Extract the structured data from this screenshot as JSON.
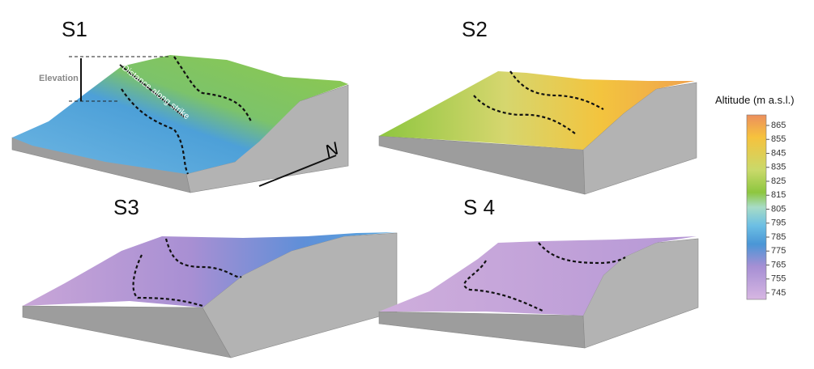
{
  "panels": [
    {
      "label": "S1"
    },
    {
      "label": "S2"
    },
    {
      "label": "S3"
    },
    {
      "label": "S 4"
    }
  ],
  "annotations": {
    "elevation": "Elevation",
    "distance": "Distance along strike",
    "north": "N"
  },
  "colorbar": {
    "title": "Altitude (m a.s.l.)",
    "ticks": [
      "865",
      "855",
      "845",
      "835",
      "825",
      "815",
      "805",
      "795",
      "785",
      "775",
      "765",
      "755",
      "745"
    ]
  }
}
